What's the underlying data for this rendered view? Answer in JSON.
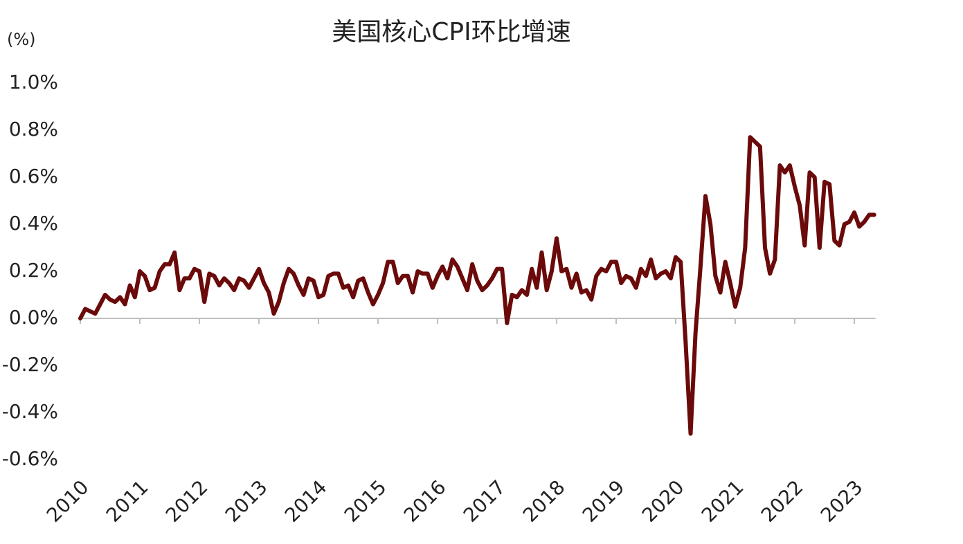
{
  "chart_data": {
    "type": "line",
    "title": "美国核心CPI环比增速",
    "y_label": "(%)",
    "color": "#6b0a0a",
    "categories": [
      "2010",
      null,
      null,
      null,
      null,
      null,
      null,
      null,
      null,
      null,
      null,
      null,
      "2011",
      null,
      null,
      null,
      null,
      null,
      null,
      null,
      null,
      null,
      null,
      null,
      "2012",
      null,
      null,
      null,
      null,
      null,
      null,
      null,
      null,
      null,
      null,
      null,
      "2013",
      null,
      null,
      null,
      null,
      null,
      null,
      null,
      null,
      null,
      null,
      null,
      "2014",
      null,
      null,
      null,
      null,
      null,
      null,
      null,
      null,
      null,
      null,
      null,
      "2015",
      null,
      null,
      null,
      null,
      null,
      null,
      null,
      null,
      null,
      null,
      null,
      "2016",
      null,
      null,
      null,
      null,
      null,
      null,
      null,
      null,
      null,
      null,
      null,
      "2017",
      null,
      null,
      null,
      null,
      null,
      null,
      null,
      null,
      null,
      null,
      null,
      "2018",
      null,
      null,
      null,
      null,
      null,
      null,
      null,
      null,
      null,
      null,
      null,
      "2019",
      null,
      null,
      null,
      null,
      null,
      null,
      null,
      null,
      null,
      null,
      null,
      "2020",
      null,
      null,
      null,
      null,
      null,
      null,
      null,
      null,
      null,
      null,
      null,
      "2021",
      null,
      null,
      null,
      null,
      null,
      null,
      null,
      null,
      null,
      null,
      null,
      "2022",
      null,
      null,
      null,
      null,
      null,
      null,
      null,
      null,
      null,
      null,
      null,
      "2023",
      null,
      null,
      null,
      null
    ],
    "values": [
      0.0,
      0.04,
      0.03,
      0.02,
      0.06,
      0.1,
      0.08,
      0.07,
      0.09,
      0.06,
      0.14,
      0.09,
      0.2,
      0.18,
      0.12,
      0.13,
      0.2,
      0.23,
      0.23,
      0.28,
      0.12,
      0.17,
      0.17,
      0.21,
      0.2,
      0.07,
      0.19,
      0.18,
      0.14,
      0.17,
      0.15,
      0.12,
      0.17,
      0.16,
      0.13,
      0.17,
      0.21,
      0.15,
      0.11,
      0.02,
      0.07,
      0.15,
      0.21,
      0.19,
      0.14,
      0.1,
      0.17,
      0.16,
      0.09,
      0.1,
      0.18,
      0.19,
      0.19,
      0.13,
      0.14,
      0.09,
      0.16,
      0.17,
      0.11,
      0.06,
      0.1,
      0.15,
      0.24,
      0.24,
      0.15,
      0.18,
      0.18,
      0.11,
      0.2,
      0.19,
      0.19,
      0.13,
      0.18,
      0.22,
      0.17,
      0.25,
      0.22,
      0.17,
      0.12,
      0.23,
      0.16,
      0.12,
      0.14,
      0.17,
      0.21,
      0.21,
      -0.02,
      0.1,
      0.09,
      0.12,
      0.1,
      0.21,
      0.13,
      0.28,
      0.12,
      0.2,
      0.34,
      0.2,
      0.21,
      0.13,
      0.19,
      0.11,
      0.12,
      0.08,
      0.18,
      0.21,
      0.2,
      0.24,
      0.24,
      0.15,
      0.18,
      0.17,
      0.13,
      0.21,
      0.18,
      0.25,
      0.17,
      0.19,
      0.2,
      0.17,
      0.26,
      0.24,
      -0.1,
      -0.49,
      -0.06,
      0.22,
      0.52,
      0.4,
      0.18,
      0.11,
      0.24,
      0.15,
      0.05,
      0.13,
      0.3,
      0.77,
      0.75,
      0.73,
      0.3,
      0.19,
      0.25,
      0.65,
      0.62,
      0.65,
      0.56,
      0.48,
      0.31,
      0.62,
      0.6,
      0.3,
      0.58,
      0.57,
      0.33,
      0.31,
      0.4,
      0.41,
      0.45,
      0.39,
      0.41,
      0.44,
      0.44
    ],
    "ylim": [
      -0.6,
      1.0
    ],
    "yticks": [
      {
        "value": 1.0,
        "label": "1.0%"
      },
      {
        "value": 0.8,
        "label": "0.8%"
      },
      {
        "value": 0.6,
        "label": "0.6%"
      },
      {
        "value": 0.4,
        "label": "0.4%"
      },
      {
        "value": 0.2,
        "label": "0.2%"
      },
      {
        "value": 0.0,
        "label": "0.0%"
      },
      {
        "value": -0.2,
        "label": "-0.2%"
      },
      {
        "value": -0.4,
        "label": "-0.4%"
      },
      {
        "value": -0.6,
        "label": "-0.6%"
      }
    ],
    "grid": false
  }
}
